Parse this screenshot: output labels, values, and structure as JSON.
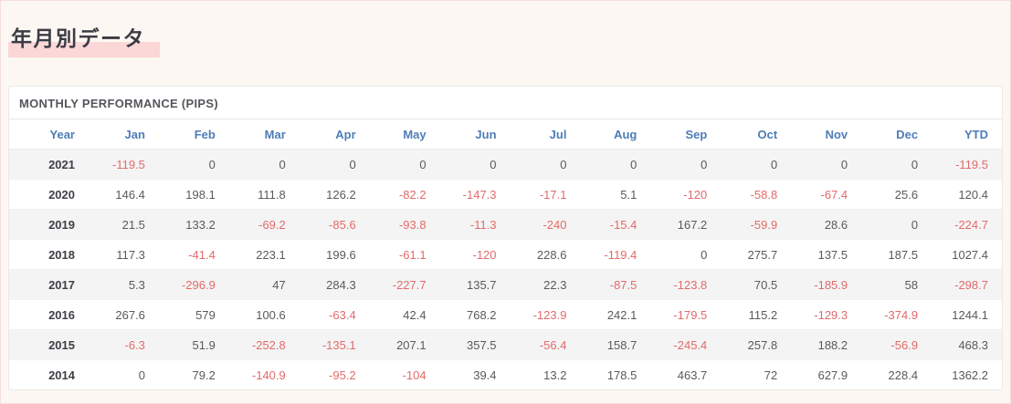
{
  "page": {
    "title": "年月別データ"
  },
  "table": {
    "heading": "MONTHLY PERFORMANCE (PIPS)",
    "columns": [
      "Year",
      "Jan",
      "Feb",
      "Mar",
      "Apr",
      "May",
      "Jun",
      "Jul",
      "Aug",
      "Sep",
      "Oct",
      "Nov",
      "Dec",
      "YTD"
    ],
    "rows": [
      {
        "year": "2021",
        "values": [
          "-119.5",
          "0",
          "0",
          "0",
          "0",
          "0",
          "0",
          "0",
          "0",
          "0",
          "0",
          "0",
          "-119.5"
        ]
      },
      {
        "year": "2020",
        "values": [
          "146.4",
          "198.1",
          "111.8",
          "126.2",
          "-82.2",
          "-147.3",
          "-17.1",
          "5.1",
          "-120",
          "-58.8",
          "-67.4",
          "25.6",
          "120.4"
        ]
      },
      {
        "year": "2019",
        "values": [
          "21.5",
          "133.2",
          "-69.2",
          "-85.6",
          "-93.8",
          "-11.3",
          "-240",
          "-15.4",
          "167.2",
          "-59.9",
          "28.6",
          "0",
          "-224.7"
        ]
      },
      {
        "year": "2018",
        "values": [
          "117.3",
          "-41.4",
          "223.1",
          "199.6",
          "-61.1",
          "-120",
          "228.6",
          "-119.4",
          "0",
          "275.7",
          "137.5",
          "187.5",
          "1027.4"
        ]
      },
      {
        "year": "2017",
        "values": [
          "5.3",
          "-296.9",
          "47",
          "284.3",
          "-227.7",
          "135.7",
          "22.3",
          "-87.5",
          "-123.8",
          "70.5",
          "-185.9",
          "58",
          "-298.7"
        ]
      },
      {
        "year": "2016",
        "values": [
          "267.6",
          "579",
          "100.6",
          "-63.4",
          "42.4",
          "768.2",
          "-123.9",
          "242.1",
          "-179.5",
          "115.2",
          "-129.3",
          "-374.9",
          "1244.1"
        ]
      },
      {
        "year": "2015",
        "values": [
          "-6.3",
          "51.9",
          "-252.8",
          "-135.1",
          "207.1",
          "357.5",
          "-56.4",
          "158.7",
          "-245.4",
          "257.8",
          "188.2",
          "-56.9",
          "468.3"
        ]
      },
      {
        "year": "2014",
        "values": [
          "0",
          "79.2",
          "-140.9",
          "-95.2",
          "-104",
          "39.4",
          "13.2",
          "178.5",
          "463.7",
          "72",
          "627.9",
          "228.4",
          "1362.2"
        ]
      }
    ]
  },
  "colors": {
    "page_background": "#fcf7f2",
    "title_highlight_pink": "#fbd7d8",
    "header_blue": "#4e7db6",
    "negative_red": "#e36a6a",
    "value_gray": "#5a5a5e",
    "stripe_gray": "#f4f4f4"
  },
  "chart_data": {
    "type": "table",
    "title": "MONTHLY PERFORMANCE (PIPS)",
    "categories": [
      "Jan",
      "Feb",
      "Mar",
      "Apr",
      "May",
      "Jun",
      "Jul",
      "Aug",
      "Sep",
      "Oct",
      "Nov",
      "Dec"
    ],
    "series": [
      {
        "name": "2021",
        "values": [
          -119.5,
          0,
          0,
          0,
          0,
          0,
          0,
          0,
          0,
          0,
          0,
          0
        ],
        "ytd": -119.5
      },
      {
        "name": "2020",
        "values": [
          146.4,
          198.1,
          111.8,
          126.2,
          -82.2,
          -147.3,
          -17.1,
          5.1,
          -120,
          -58.8,
          -67.4,
          25.6
        ],
        "ytd": 120.4
      },
      {
        "name": "2019",
        "values": [
          21.5,
          133.2,
          -69.2,
          -85.6,
          -93.8,
          -11.3,
          -240,
          -15.4,
          167.2,
          -59.9,
          28.6,
          0
        ],
        "ytd": -224.7
      },
      {
        "name": "2018",
        "values": [
          117.3,
          -41.4,
          223.1,
          199.6,
          -61.1,
          -120,
          228.6,
          -119.4,
          0,
          275.7,
          137.5,
          187.5
        ],
        "ytd": 1027.4
      },
      {
        "name": "2017",
        "values": [
          5.3,
          -296.9,
          47,
          284.3,
          -227.7,
          135.7,
          22.3,
          -87.5,
          -123.8,
          70.5,
          -185.9,
          58
        ],
        "ytd": -298.7
      },
      {
        "name": "2016",
        "values": [
          267.6,
          579,
          100.6,
          -63.4,
          42.4,
          768.2,
          -123.9,
          242.1,
          -179.5,
          115.2,
          -129.3,
          -374.9
        ],
        "ytd": 1244.1
      },
      {
        "name": "2015",
        "values": [
          -6.3,
          51.9,
          -252.8,
          -135.1,
          207.1,
          357.5,
          -56.4,
          158.7,
          -245.4,
          257.8,
          188.2,
          -56.9
        ],
        "ytd": 468.3
      },
      {
        "name": "2014",
        "values": [
          0,
          79.2,
          -140.9,
          -95.2,
          -104,
          39.4,
          13.2,
          178.5,
          463.7,
          72,
          627.9,
          228.4
        ],
        "ytd": 1362.2
      }
    ],
    "notes": "Negative values rendered in red, non-negative in gray; rows striped; year column bold."
  }
}
